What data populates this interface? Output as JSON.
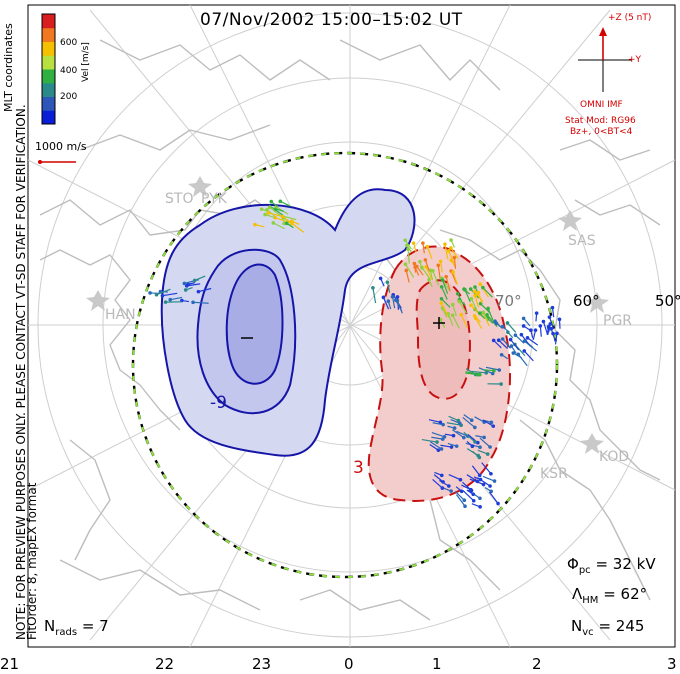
{
  "title": "07/Nov/2002 15:00–15:02 UT",
  "vertical_notes": {
    "preview": "NOTE: FOR PREVIEW PURPOSES ONLY. PLEASE CONTACT VT-SD STAFF FOR VERIFICATION.",
    "fitorder": "FitOrder: 8, mapEX format",
    "mlt": "MLT coordinates"
  },
  "colorbar": {
    "label": "Vel [m/s]",
    "ticks": [
      "600",
      "400",
      "200"
    ],
    "colors": [
      "#d81e1e",
      "#f07820",
      "#f5c000",
      "#b8e040",
      "#30b040",
      "#2a8a8a",
      "#2c56b8",
      "#0a1ed8"
    ]
  },
  "scale": {
    "label": "1000 m/s"
  },
  "imf": {
    "z_label": "+Z (5 nT)",
    "y_label": "+Y",
    "source": "OMNI IMF",
    "model": "Stat Mod: RG96",
    "condition": "Bz+, 0<BT<4"
  },
  "sites": [
    "STO",
    "PYK",
    "HAN",
    "SAS",
    "PGR",
    "KOD",
    "KSR"
  ],
  "latitudes": [
    "50°",
    "60°",
    "70°"
  ],
  "contours": {
    "neg_label": "-9",
    "pos_label": "3",
    "min_marker": "–",
    "max_marker": "+"
  },
  "stats": {
    "phi_label": "Φ",
    "phi_sub": "pc",
    "phi_value": "= 32 kV",
    "lambda_label": "Λ",
    "lambda_sub": "HM",
    "lambda_value": "= 62°",
    "nvc_label": "N",
    "nvc_sub": "vc",
    "nvc_value": "= 245",
    "nrads_label": "N",
    "nrads_sub": "rads",
    "nrads_value": "= 7"
  },
  "mlt_axis": [
    "21",
    "22",
    "23",
    "0",
    "1",
    "2",
    "3"
  ],
  "colors": {
    "neg_fill": "#d4d8f0",
    "neg_inner": "#a9ade6",
    "neg_line": "#1515a8",
    "pos_fill": "#f3cccc",
    "pos_line": "#c81010",
    "hmb": "#90e040",
    "coast": "#bfbfbf",
    "grid": "#cfcfcf",
    "imf": "#d40000"
  }
}
